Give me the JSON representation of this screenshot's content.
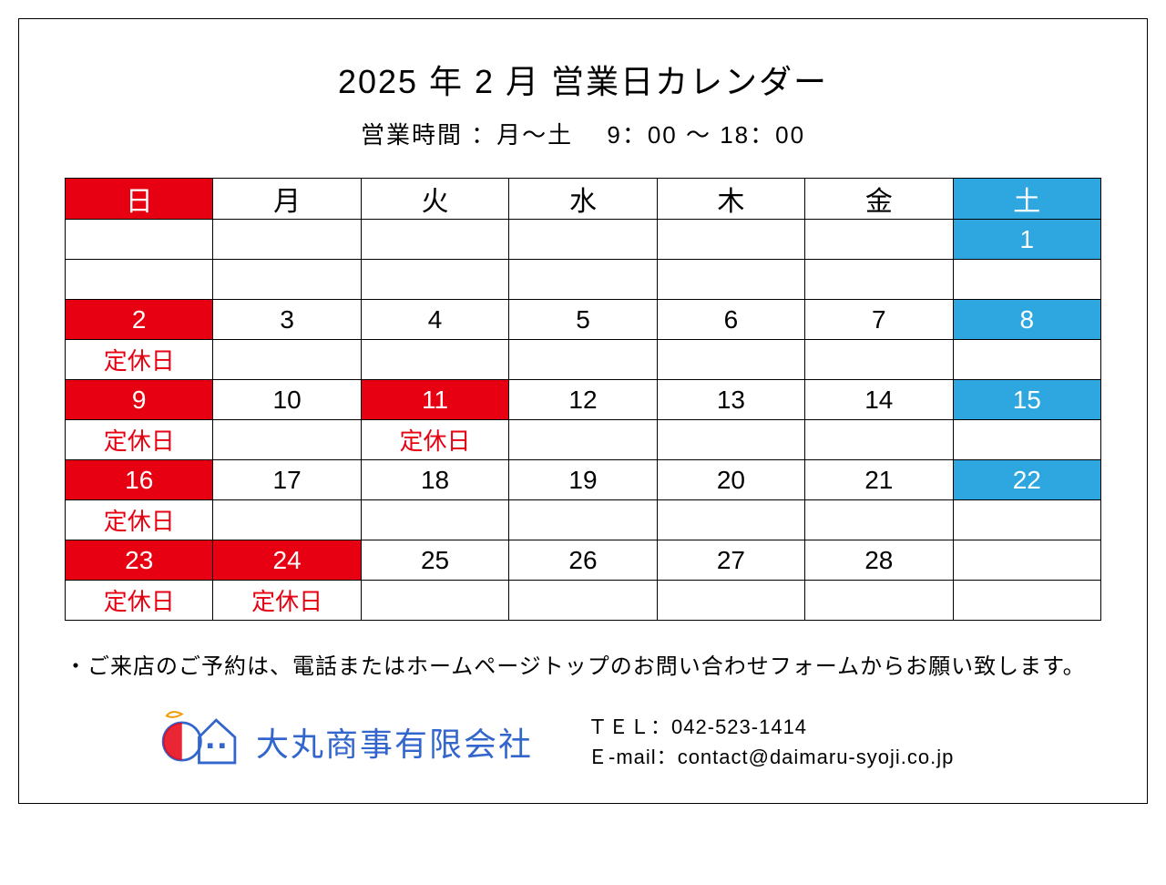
{
  "title": "2025 年 2 月  営業日カレンダー",
  "subtitle": "営業時間 ：月～土　 9：00 ～ 18：00",
  "colors": {
    "sunday_bg": "#e60012",
    "sunday_fg": "#ffffff",
    "saturday_bg": "#2ea7e0",
    "saturday_fg": "#ffffff",
    "normal_bg": "#ffffff",
    "normal_fg": "#000000",
    "holiday_label_fg": "#e60012",
    "border": "#000000",
    "company_color": "#3366cc"
  },
  "weekdays": [
    {
      "label": "日",
      "type": "sun"
    },
    {
      "label": "月",
      "type": "normal"
    },
    {
      "label": "火",
      "type": "normal"
    },
    {
      "label": "水",
      "type": "normal"
    },
    {
      "label": "木",
      "type": "normal"
    },
    {
      "label": "金",
      "type": "normal"
    },
    {
      "label": "土",
      "type": "sat"
    }
  ],
  "holiday_label": "定休日",
  "weeks": [
    [
      {
        "day": "",
        "type": "normal",
        "holiday": false
      },
      {
        "day": "",
        "type": "normal",
        "holiday": false
      },
      {
        "day": "",
        "type": "normal",
        "holiday": false
      },
      {
        "day": "",
        "type": "normal",
        "holiday": false
      },
      {
        "day": "",
        "type": "normal",
        "holiday": false
      },
      {
        "day": "",
        "type": "normal",
        "holiday": false
      },
      {
        "day": "1",
        "type": "sat",
        "holiday": false
      }
    ],
    [
      {
        "day": "2",
        "type": "sun",
        "holiday": true
      },
      {
        "day": "3",
        "type": "normal",
        "holiday": false
      },
      {
        "day": "4",
        "type": "normal",
        "holiday": false
      },
      {
        "day": "5",
        "type": "normal",
        "holiday": false
      },
      {
        "day": "6",
        "type": "normal",
        "holiday": false
      },
      {
        "day": "7",
        "type": "normal",
        "holiday": false
      },
      {
        "day": "8",
        "type": "sat",
        "holiday": false
      }
    ],
    [
      {
        "day": "9",
        "type": "sun",
        "holiday": true
      },
      {
        "day": "10",
        "type": "normal",
        "holiday": false
      },
      {
        "day": "11",
        "type": "sun",
        "holiday": true
      },
      {
        "day": "12",
        "type": "normal",
        "holiday": false
      },
      {
        "day": "13",
        "type": "normal",
        "holiday": false
      },
      {
        "day": "14",
        "type": "normal",
        "holiday": false
      },
      {
        "day": "15",
        "type": "sat",
        "holiday": false
      }
    ],
    [
      {
        "day": "16",
        "type": "sun",
        "holiday": true
      },
      {
        "day": "17",
        "type": "normal",
        "holiday": false
      },
      {
        "day": "18",
        "type": "normal",
        "holiday": false
      },
      {
        "day": "19",
        "type": "normal",
        "holiday": false
      },
      {
        "day": "20",
        "type": "normal",
        "holiday": false
      },
      {
        "day": "21",
        "type": "normal",
        "holiday": false
      },
      {
        "day": "22",
        "type": "sat",
        "holiday": false
      }
    ],
    [
      {
        "day": "23",
        "type": "sun",
        "holiday": true
      },
      {
        "day": "24",
        "type": "sun",
        "holiday": true
      },
      {
        "day": "25",
        "type": "normal",
        "holiday": false
      },
      {
        "day": "26",
        "type": "normal",
        "holiday": false
      },
      {
        "day": "27",
        "type": "normal",
        "holiday": false
      },
      {
        "day": "28",
        "type": "normal",
        "holiday": false
      },
      {
        "day": "",
        "type": "normal",
        "holiday": false
      }
    ]
  ],
  "note": "・ご来店のご予約は、電話またはホームページトップのお問い合わせフォームからお願い致します。",
  "company_name": "大丸商事有限会社",
  "contact": {
    "tel_label": "ＴＥＬ：",
    "tel_value": "042-523-1414",
    "email_label": "Ｅ-mail：",
    "email_value": "contact@daimaru-syoji.co.jp"
  }
}
